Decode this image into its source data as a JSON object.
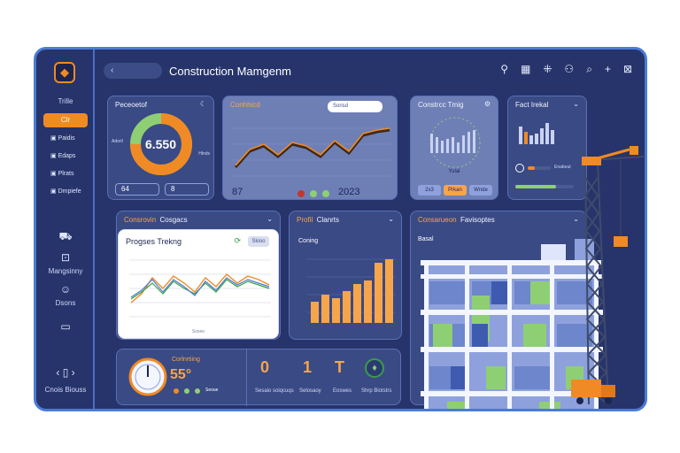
{
  "app": {
    "title": "Construction Mamgenm",
    "logo": "shield-logo"
  },
  "topbar": {
    "back_label": "‹",
    "icons": [
      "location-icon",
      "calendar-icon",
      "grid-icon",
      "user-icon",
      "search-icon",
      "add-icon",
      "expand-icon"
    ]
  },
  "sidebar": {
    "heading": "Trille",
    "active_item": "Clr",
    "items": [
      "Paidis",
      "Edaps",
      "Plrats",
      "Dmpiefe"
    ],
    "lower_items": [
      "Mangsinny",
      "Dsons"
    ],
    "footer_label": "Cnois Biouss"
  },
  "cards": {
    "donut": {
      "title": "Peceoetof",
      "value": "6.550",
      "left_label": "Adoril",
      "right_label": "Hlnds",
      "pill_left": "64     ",
      "pill_right": "8    ",
      "percent": 0.75
    },
    "line_top": {
      "title": "Conhhicd",
      "search_placeholder": "Sorisd",
      "left_val": "87",
      "right_val": "2023"
    },
    "tracking": {
      "title": "Constrcc Tmig",
      "footer": "Yulai",
      "btn_left": "2x3",
      "btn_mid": "Prkan",
      "btn_right": "Wnde"
    },
    "fast": {
      "title": "Fact Irekal",
      "bar1_label": "Enabout",
      "bar1": 0.3,
      "bar2": 0.7
    },
    "progress_header": {
      "title": "Consrovin",
      "subtitle": "Cosgacs"
    },
    "progress": {
      "title": "Progses Trekng",
      "btn": "Skioo",
      "xcap": "Sosee"
    },
    "profit": {
      "title": "Profil",
      "subtitle": "Clanrts",
      "sub_label": "Coning",
      "values": [
        30,
        40,
        35,
        45,
        55,
        60,
        85,
        90
      ]
    },
    "consruction": {
      "title": "Consarueon",
      "subtitle": "Favisoptes",
      "sub_label": "Basal"
    },
    "bottom": {
      "title": "Corlnrtiing",
      "gauge_percent": "55°",
      "legend": "Seoue",
      "stats": [
        {
          "value": "0",
          "caption": "Sesaio soiqcuqs"
        },
        {
          "value": "1",
          "caption": "Selosaoy"
        },
        {
          "value": "T",
          "caption": "Eoswes"
        },
        {
          "value": "",
          "caption": "Shrp Biotstrs"
        }
      ]
    }
  },
  "colors": {
    "accent": "#f08a24",
    "panel": "#26346b",
    "card": "#3a4a85",
    "green": "#8fcf74",
    "blue_line": "#4b7bd6"
  }
}
